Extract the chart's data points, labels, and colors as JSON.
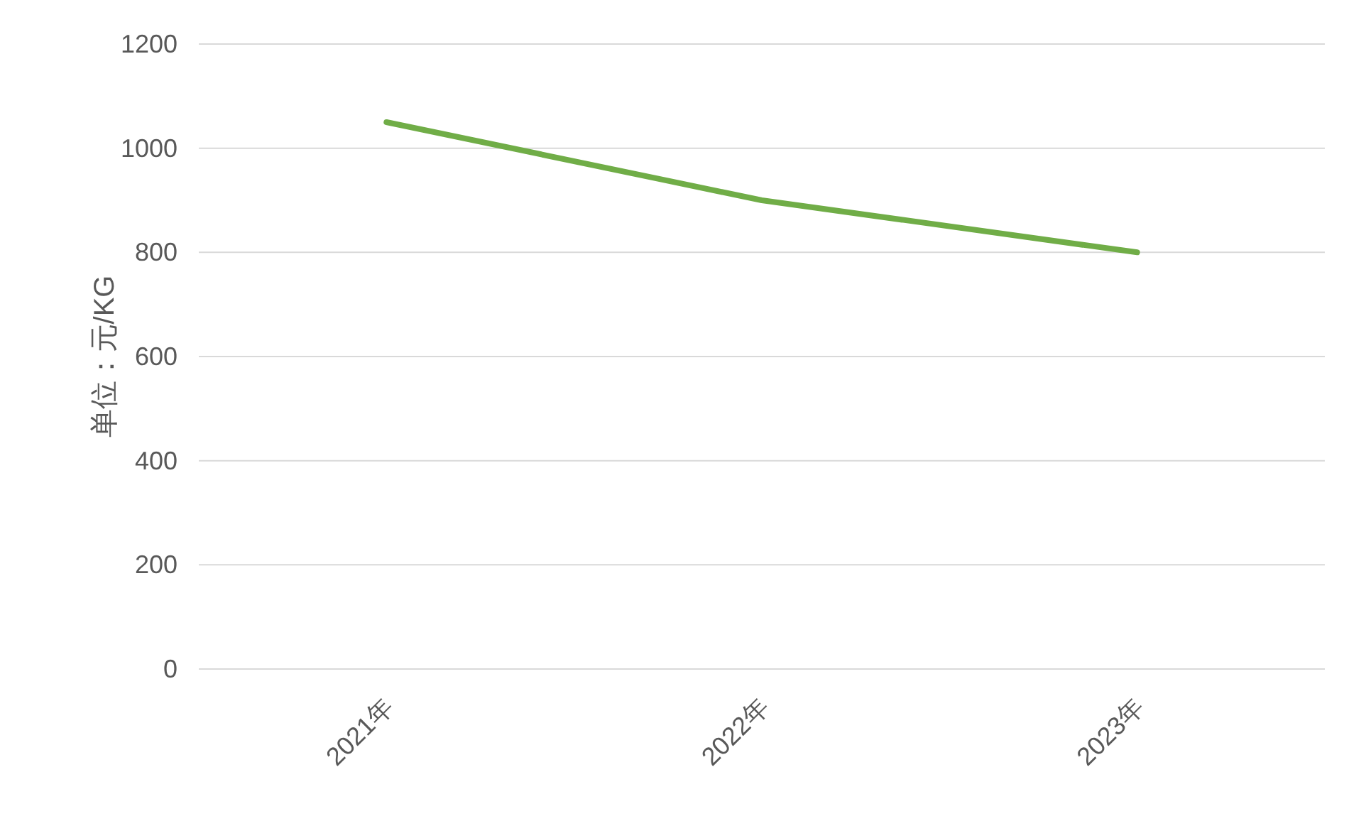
{
  "chart_data": {
    "type": "line",
    "ylabel": "单位：元/KG",
    "categories": [
      "2021年",
      "2022年",
      "2023年"
    ],
    "series": [
      {
        "color": "#70ad47",
        "values": [
          1050,
          900,
          800
        ]
      }
    ],
    "ylim": [
      0,
      1200
    ],
    "yticks": [
      0,
      200,
      400,
      600,
      800,
      1000,
      1200
    ],
    "grid": "y",
    "marker": "none",
    "line_style": "solid"
  }
}
